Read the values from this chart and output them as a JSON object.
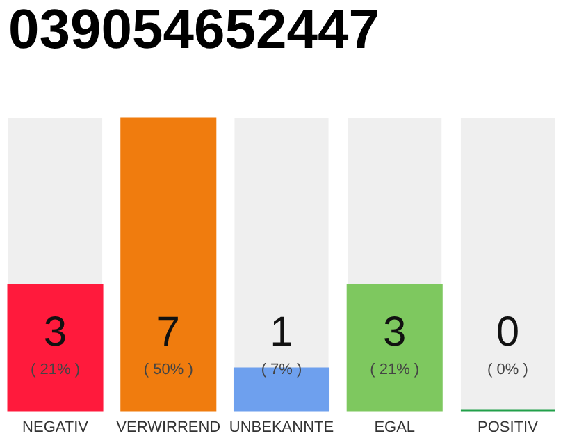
{
  "chart_data": {
    "type": "bar",
    "title": "039054652447",
    "categories": [
      "NEGATIV",
      "VERWIRREND",
      "UNBEKANNTE",
      "EGAL",
      "POSITIV"
    ],
    "values": [
      3,
      7,
      1,
      3,
      0
    ],
    "colors": [
      "#ff1a3c",
      "#f07c0e",
      "#6ea0ee",
      "#7ec85f",
      "#22a04a"
    ],
    "tick_labels": "x",
    "data_labels": true,
    "annotations": [
      "( 21% )",
      "( 50% )",
      "( 7% )",
      "( 21% )",
      "( 0% )"
    ]
  }
}
